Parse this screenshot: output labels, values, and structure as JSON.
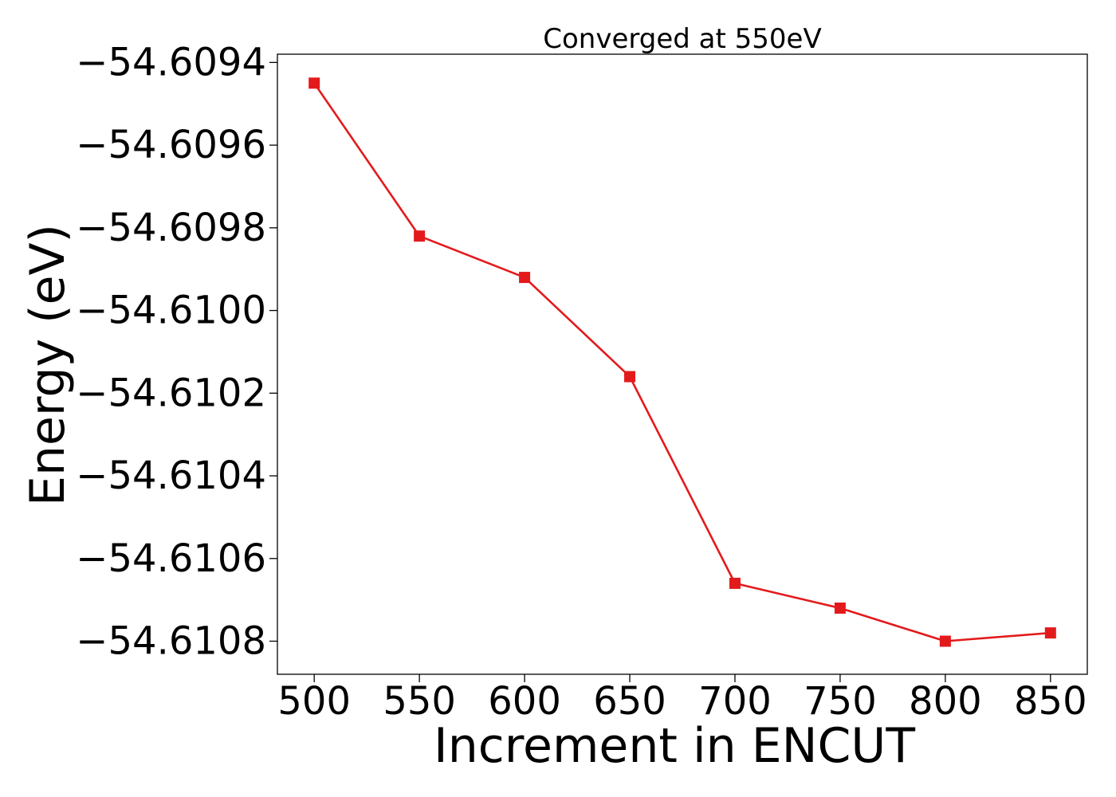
{
  "chart_data": {
    "type": "line",
    "title": "Converged at 550eV",
    "xlabel": "Increment in ENCUT",
    "ylabel": "Energy (eV)",
    "x": [
      500,
      550,
      600,
      650,
      700,
      750,
      800,
      850
    ],
    "series": [
      {
        "values": [
          -54.60945,
          -54.60982,
          -54.60992,
          -54.61016,
          -54.61066,
          -54.61072,
          -54.6108,
          -54.61078
        ],
        "color": "#e31a1c",
        "marker": "square"
      }
    ],
    "xticks": [
      500,
      550,
      600,
      650,
      700,
      750,
      800,
      850
    ],
    "xtick_labels": [
      "500",
      "550",
      "600",
      "650",
      "700",
      "750",
      "800",
      "850"
    ],
    "yticks": [
      -54.6094,
      -54.6096,
      -54.6098,
      -54.61,
      -54.6102,
      -54.6104,
      -54.6106,
      -54.6108
    ],
    "ytick_labels": [
      "−54.6094",
      "−54.6096",
      "−54.6098",
      "−54.6100",
      "−54.6102",
      "−54.6104",
      "−54.6106",
      "−54.6108"
    ],
    "xlim": [
      482.5,
      867.5
    ],
    "ylim": [
      -54.61088,
      -54.60938
    ],
    "grid": false,
    "legend": false
  }
}
